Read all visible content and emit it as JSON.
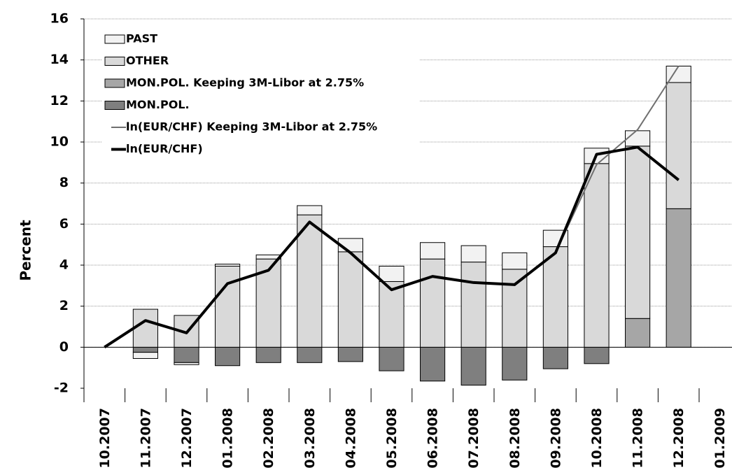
{
  "chart_data": {
    "type": "bar",
    "y_label": "Percent",
    "categories": [
      "10.2007",
      "11.2007",
      "12.2007",
      "01.2008",
      "02.2008",
      "03.2008",
      "04.2008",
      "05.2008",
      "06.2008",
      "07.2008",
      "08.2008",
      "09.2008",
      "10.2008",
      "11.2008",
      "12.2008",
      "01.2009"
    ],
    "series": [
      {
        "name": "PAST",
        "type": "bar",
        "color": "#f2f2f2",
        "values": [
          null,
          -0.3,
          -0.1,
          0.1,
          0.2,
          0.45,
          0.65,
          0.75,
          0.8,
          0.8,
          0.8,
          0.8,
          0.75,
          0.75,
          0.8,
          null
        ]
      },
      {
        "name": "OTHER",
        "type": "bar",
        "color": "#d9d9d9",
        "values": [
          null,
          1.85,
          1.55,
          3.95,
          4.3,
          6.45,
          4.65,
          3.2,
          4.3,
          4.15,
          3.8,
          4.9,
          8.95,
          8.4,
          6.15,
          null
        ]
      },
      {
        "name": "MON.POL. Keeping 3M-Libor at 2.75%",
        "type": "bar",
        "color": "#a6a6a6",
        "values": [
          null,
          null,
          null,
          null,
          null,
          null,
          null,
          null,
          null,
          null,
          null,
          null,
          null,
          1.4,
          6.75,
          null
        ]
      },
      {
        "name": "MON.POL.",
        "type": "bar",
        "color": "#7f7f7f",
        "values": [
          null,
          -0.25,
          -0.75,
          -0.9,
          -0.75,
          -0.75,
          -0.7,
          -1.15,
          -1.65,
          -1.85,
          -1.6,
          -1.05,
          -0.8,
          null,
          null,
          null
        ]
      },
      {
        "name": "ln(EUR/CHF) Keeping 3M-Libor at 2.75%",
        "type": "line",
        "color": "#707070",
        "width": 2,
        "values": [
          null,
          null,
          null,
          null,
          null,
          null,
          null,
          null,
          null,
          null,
          null,
          4.6,
          8.9,
          10.6,
          13.7,
          null
        ]
      },
      {
        "name": "ln(EUR/CHF)",
        "type": "line",
        "color": "#000000",
        "width": 4,
        "values": [
          0,
          1.3,
          0.7,
          3.1,
          3.75,
          6.1,
          4.6,
          2.8,
          3.45,
          3.15,
          3.05,
          4.6,
          9.4,
          9.75,
          8.15,
          null
        ]
      }
    ],
    "ylim": [
      -2,
      16
    ],
    "yticks": [
      -2,
      0,
      2,
      4,
      6,
      8,
      10,
      12,
      14,
      16
    ],
    "grid": true,
    "legend": "top-left"
  }
}
